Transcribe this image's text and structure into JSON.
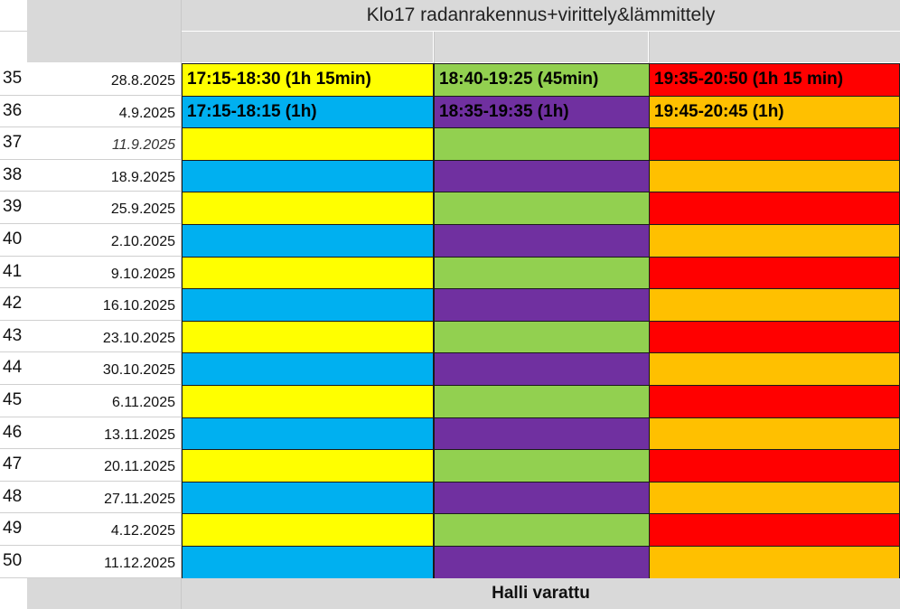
{
  "sheet": {
    "title": "Klo17 radanrakennus+virittely&lämmittely",
    "footer": "Halli varattu"
  },
  "colors": {
    "yellow": "#ffff00",
    "green": "#92d050",
    "red": "#ff0000",
    "blue": "#00b0f0",
    "purple": "#7030a0",
    "orange": "#ffc000",
    "header_gray": "#d9d9d9"
  },
  "rows": [
    {
      "week": "35",
      "date": "28.8.2025",
      "italic": false,
      "pattern": "A",
      "slot1": "17:15-18:30 (1h 15min)",
      "slot2": "18:40-19:25 (45min)",
      "slot3": "19:35-20:50 (1h 15 min)"
    },
    {
      "week": "36",
      "date": "4.9.2025",
      "italic": false,
      "pattern": "B",
      "slot1": "17:15-18:15 (1h)",
      "slot2": "18:35-19:35 (1h)",
      "slot3": "19:45-20:45 (1h)"
    },
    {
      "week": "37",
      "date": "11.9.2025",
      "italic": true,
      "pattern": "A",
      "slot1": "",
      "slot2": "",
      "slot3": ""
    },
    {
      "week": "38",
      "date": "18.9.2025",
      "italic": false,
      "pattern": "B",
      "slot1": "",
      "slot2": "",
      "slot3": ""
    },
    {
      "week": "39",
      "date": "25.9.2025",
      "italic": false,
      "pattern": "A",
      "slot1": "",
      "slot2": "",
      "slot3": ""
    },
    {
      "week": "40",
      "date": "2.10.2025",
      "italic": false,
      "pattern": "B",
      "slot1": "",
      "slot2": "",
      "slot3": ""
    },
    {
      "week": "41",
      "date": "9.10.2025",
      "italic": false,
      "pattern": "A",
      "slot1": "",
      "slot2": "",
      "slot3": ""
    },
    {
      "week": "42",
      "date": "16.10.2025",
      "italic": false,
      "pattern": "B",
      "slot1": "",
      "slot2": "",
      "slot3": ""
    },
    {
      "week": "43",
      "date": "23.10.2025",
      "italic": false,
      "pattern": "A",
      "slot1": "",
      "slot2": "",
      "slot3": ""
    },
    {
      "week": "44",
      "date": "30.10.2025",
      "italic": false,
      "pattern": "B",
      "slot1": "",
      "slot2": "",
      "slot3": ""
    },
    {
      "week": "45",
      "date": "6.11.2025",
      "italic": false,
      "pattern": "A",
      "slot1": "",
      "slot2": "",
      "slot3": ""
    },
    {
      "week": "46",
      "date": "13.11.2025",
      "italic": false,
      "pattern": "B",
      "slot1": "",
      "slot2": "",
      "slot3": ""
    },
    {
      "week": "47",
      "date": "20.11.2025",
      "italic": false,
      "pattern": "A",
      "slot1": "",
      "slot2": "",
      "slot3": ""
    },
    {
      "week": "48",
      "date": "27.11.2025",
      "italic": false,
      "pattern": "B",
      "slot1": "",
      "slot2": "",
      "slot3": ""
    },
    {
      "week": "49",
      "date": "4.12.2025",
      "italic": false,
      "pattern": "A",
      "slot1": "",
      "slot2": "",
      "slot3": ""
    },
    {
      "week": "50",
      "date": "11.12.2025",
      "italic": false,
      "pattern": "B",
      "slot1": "",
      "slot2": "",
      "slot3": ""
    }
  ]
}
